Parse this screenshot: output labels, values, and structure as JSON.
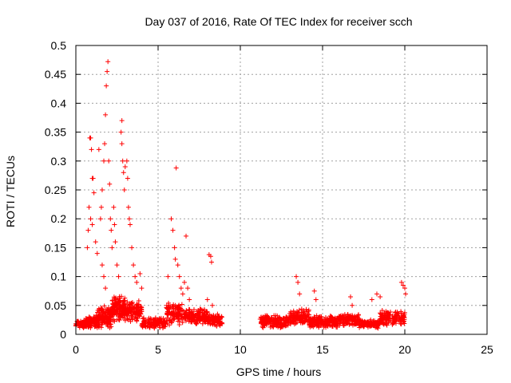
{
  "chart_data": {
    "type": "scatter",
    "title": "Day 037 of 2016, Rate Of TEC Index for receiver scch",
    "xlabel": "GPS time / hours",
    "ylabel": "ROTI / TECUs",
    "xlim": [
      0,
      25
    ],
    "ylim": [
      0,
      0.5
    ],
    "x_ticks": [
      "0",
      "5",
      "10",
      "15",
      "20",
      "25"
    ],
    "y_ticks": [
      "0",
      "0.05",
      "0.1",
      "0.15",
      "0.2",
      "0.25",
      "0.3",
      "0.35",
      "0.4",
      "0.45",
      "0.5"
    ],
    "grid": true,
    "legend": "none",
    "marker": "plus",
    "color": "#ff0000",
    "bands": [
      {
        "x": [
          0.0,
          0.6
        ],
        "center": 0.018,
        "spread": 0.008,
        "count": 70
      },
      {
        "x": [
          0.6,
          1.3
        ],
        "center": 0.022,
        "spread": 0.012,
        "count": 90
      },
      {
        "x": [
          1.3,
          2.2
        ],
        "center": 0.03,
        "spread": 0.02,
        "count": 140
      },
      {
        "x": [
          2.2,
          3.0
        ],
        "center": 0.045,
        "spread": 0.025,
        "count": 140
      },
      {
        "x": [
          3.0,
          4.0
        ],
        "center": 0.04,
        "spread": 0.02,
        "count": 110
      },
      {
        "x": [
          4.0,
          5.5
        ],
        "center": 0.02,
        "spread": 0.01,
        "count": 130
      },
      {
        "x": [
          5.5,
          6.5
        ],
        "center": 0.035,
        "spread": 0.02,
        "count": 110
      },
      {
        "x": [
          6.5,
          8.0
        ],
        "center": 0.03,
        "spread": 0.015,
        "count": 150
      },
      {
        "x": [
          8.0,
          8.9
        ],
        "center": 0.025,
        "spread": 0.012,
        "count": 90
      },
      {
        "x": [
          11.2,
          13.0
        ],
        "center": 0.022,
        "spread": 0.012,
        "count": 170
      },
      {
        "x": [
          13.0,
          14.2
        ],
        "center": 0.03,
        "spread": 0.015,
        "count": 120
      },
      {
        "x": [
          14.2,
          16.0
        ],
        "center": 0.022,
        "spread": 0.012,
        "count": 170
      },
      {
        "x": [
          16.0,
          17.2
        ],
        "center": 0.025,
        "spread": 0.012,
        "count": 110
      },
      {
        "x": [
          17.2,
          18.5
        ],
        "center": 0.018,
        "spread": 0.008,
        "count": 110
      },
      {
        "x": [
          18.5,
          20.0
        ],
        "center": 0.028,
        "spread": 0.015,
        "count": 140
      }
    ],
    "points": [
      [
        0.7,
        0.15
      ],
      [
        0.75,
        0.18
      ],
      [
        0.8,
        0.22
      ],
      [
        0.85,
        0.34
      ],
      [
        0.9,
        0.34
      ],
      [
        0.95,
        0.32
      ],
      [
        1.0,
        0.27
      ],
      [
        1.05,
        0.27
      ],
      [
        1.1,
        0.245
      ],
      [
        0.9,
        0.2
      ],
      [
        1.0,
        0.19
      ],
      [
        1.2,
        0.16
      ],
      [
        1.3,
        0.14
      ],
      [
        1.4,
        0.32
      ],
      [
        1.5,
        0.2
      ],
      [
        1.55,
        0.22
      ],
      [
        1.6,
        0.25
      ],
      [
        1.7,
        0.3
      ],
      [
        1.75,
        0.33
      ],
      [
        1.8,
        0.38
      ],
      [
        1.85,
        0.43
      ],
      [
        1.9,
        0.455
      ],
      [
        1.95,
        0.472
      ],
      [
        2.0,
        0.3
      ],
      [
        2.05,
        0.26
      ],
      [
        2.1,
        0.2
      ],
      [
        2.15,
        0.18
      ],
      [
        2.2,
        0.15
      ],
      [
        1.6,
        0.12
      ],
      [
        1.7,
        0.1
      ],
      [
        1.8,
        0.08
      ],
      [
        2.3,
        0.22
      ],
      [
        2.35,
        0.19
      ],
      [
        2.4,
        0.16
      ],
      [
        2.5,
        0.12
      ],
      [
        2.6,
        0.1
      ],
      [
        2.75,
        0.35
      ],
      [
        2.8,
        0.37
      ],
      [
        2.8,
        0.33
      ],
      [
        2.85,
        0.3
      ],
      [
        2.9,
        0.28
      ],
      [
        2.95,
        0.25
      ],
      [
        3.0,
        0.29
      ],
      [
        3.1,
        0.3
      ],
      [
        3.15,
        0.27
      ],
      [
        3.2,
        0.22
      ],
      [
        3.25,
        0.2
      ],
      [
        3.3,
        0.19
      ],
      [
        3.4,
        0.15
      ],
      [
        3.5,
        0.12
      ],
      [
        3.6,
        0.1
      ],
      [
        3.7,
        0.09
      ],
      [
        3.9,
        0.105
      ],
      [
        4.0,
        0.08
      ],
      [
        5.6,
        0.1
      ],
      [
        5.8,
        0.2
      ],
      [
        5.9,
        0.18
      ],
      [
        6.0,
        0.15
      ],
      [
        6.05,
        0.13
      ],
      [
        6.1,
        0.288
      ],
      [
        6.2,
        0.12
      ],
      [
        6.3,
        0.1
      ],
      [
        6.4,
        0.08
      ],
      [
        6.5,
        0.07
      ],
      [
        6.6,
        0.09
      ],
      [
        6.7,
        0.17
      ],
      [
        6.8,
        0.08
      ],
      [
        6.9,
        0.06
      ],
      [
        8.0,
        0.06
      ],
      [
        8.1,
        0.138
      ],
      [
        8.2,
        0.135
      ],
      [
        8.25,
        0.125
      ],
      [
        8.3,
        0.05
      ],
      [
        13.4,
        0.1
      ],
      [
        13.5,
        0.09
      ],
      [
        13.6,
        0.07
      ],
      [
        14.5,
        0.075
      ],
      [
        14.6,
        0.06
      ],
      [
        16.7,
        0.065
      ],
      [
        16.8,
        0.05
      ],
      [
        18.0,
        0.06
      ],
      [
        18.3,
        0.07
      ],
      [
        18.5,
        0.065
      ],
      [
        19.8,
        0.09
      ],
      [
        19.9,
        0.085
      ],
      [
        20.0,
        0.08
      ],
      [
        20.05,
        0.07
      ]
    ]
  }
}
